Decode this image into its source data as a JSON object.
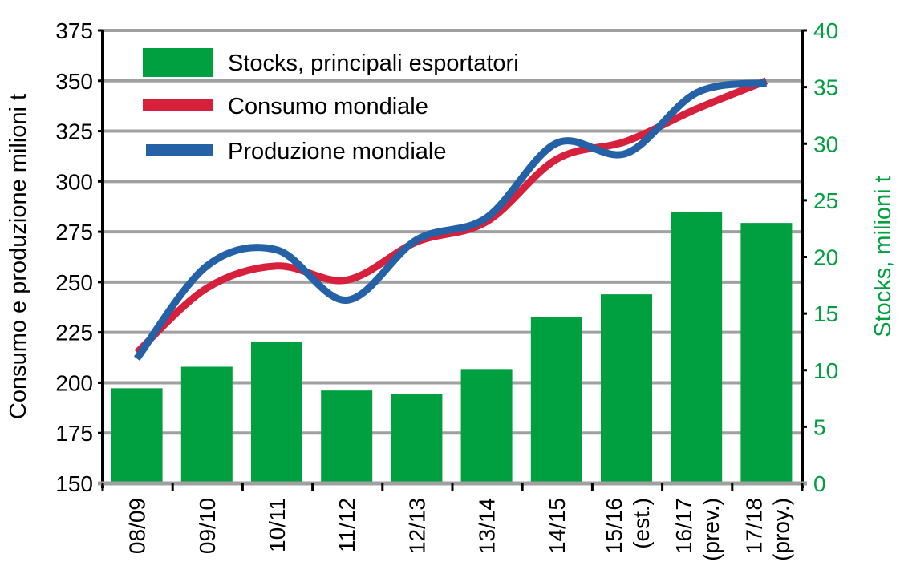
{
  "chart_data": {
    "type": "bar+line",
    "categories": [
      [
        "08/09"
      ],
      [
        "09/10"
      ],
      [
        "10/11"
      ],
      [
        "11/12"
      ],
      [
        "12/13"
      ],
      [
        "13/14"
      ],
      [
        "14/15"
      ],
      [
        "15/16",
        "(est.)"
      ],
      [
        "16/17",
        "(prev.)"
      ],
      [
        "17/18",
        "(proy.)"
      ]
    ],
    "ylabel_left": "Consumo e produzione milioni t",
    "ylabel_right": "Stocks, milioni t",
    "ylim_left": [
      150,
      375
    ],
    "yticks_left": [
      150,
      175,
      200,
      225,
      250,
      275,
      300,
      325,
      350,
      375
    ],
    "ylim_right": [
      0,
      40
    ],
    "yticks_right": [
      0,
      5,
      10,
      15,
      20,
      25,
      30,
      35,
      40
    ],
    "grid": true,
    "legend_position": "top-left",
    "series": [
      {
        "name": "Stocks, principali esportatori",
        "type": "bar",
        "axis": "right",
        "color": "#00a040",
        "values": [
          8.4,
          10.3,
          12.5,
          8.2,
          7.9,
          10.1,
          14.7,
          16.7,
          24.0,
          23.0
        ]
      },
      {
        "name": "Consumo mondiale",
        "type": "line",
        "axis": "left",
        "color": "#d7203c",
        "values": [
          215,
          247,
          258,
          251,
          270,
          280,
          311,
          320,
          336,
          350
        ]
      },
      {
        "name": "Produzione mondiale",
        "type": "line",
        "axis": "left",
        "color": "#2461a6",
        "values": [
          212,
          258,
          266,
          241,
          271,
          282,
          319,
          314,
          344,
          349
        ]
      }
    ],
    "colors": {
      "right_axis": "#00a040",
      "grid": "#a0a0a0",
      "axis": "#000000"
    }
  }
}
